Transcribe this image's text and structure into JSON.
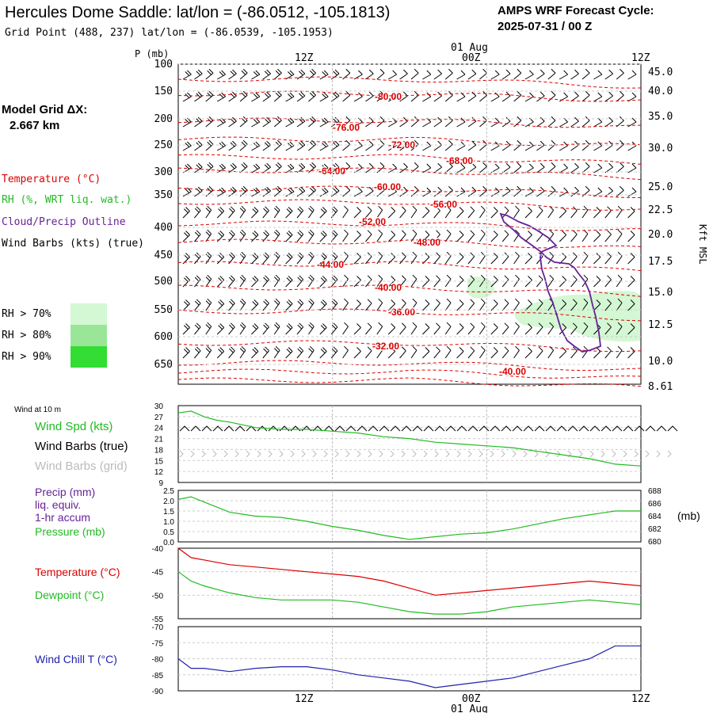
{
  "header": {
    "title": "Hercules Dome Saddle:  lat/lon = (-86.0512, -105.1813)",
    "grid_point": "Grid Point (488, 237) lat/lon = (-86.0539, -105.1953)",
    "cycle_line1": "AMPS WRF Forecast Cycle:",
    "cycle_line2": "2025-07-31 / 00  Z"
  },
  "left_legend": {
    "model_grid_line1": "Model Grid ΔX:",
    "model_grid_line2": "2.667 km",
    "temperature": "Temperature (°C)",
    "rh": "RH (%, WRT liq. wat.)",
    "cloud": "Cloud/Precip Outline",
    "wind_barbs": "Wind Barbs (kts) (true)",
    "rh70": "RH > 70%",
    "rh80": "RH > 80%",
    "rh90": "RH > 90%"
  },
  "colors": {
    "temperature": "#dd0000",
    "rh_green": "#22bb22",
    "cloud_outline": "#662299",
    "rh70_fill": "#d4f7d4",
    "rh80_fill": "#99e699",
    "rh90_fill": "#33dd33",
    "windchill": "#2222aa",
    "grid_barbs": "#bbbbbb"
  },
  "time_axis": {
    "top_labels": [
      "12Z",
      "00Z",
      "12Z"
    ],
    "date_label": "01 Aug",
    "bottom_labels": [
      "12Z",
      "00Z",
      "12Z"
    ],
    "bottom_date_label": "01 Aug"
  },
  "cross_section": {
    "p_axis_title": "P (mb)",
    "pressure_ticks": [
      "100",
      "150",
      "200",
      "250",
      "300",
      "350",
      "400",
      "450",
      "500",
      "550",
      "600",
      "650"
    ],
    "height_axis_title": "Kft MSL",
    "height_ticks": [
      "45.0",
      "40.0",
      "35.0",
      "30.0",
      "25.0",
      "22.5",
      "20.0",
      "17.5",
      "15.0",
      "12.5",
      "10.0",
      "8.61"
    ],
    "temperature_labels": [
      "-80.00",
      "-76.00",
      "-72.00",
      "-68.00",
      "-64.00",
      "-60.00",
      "-56.00",
      "-52.00",
      "-48.00",
      "-44.00",
      "-40.00",
      "-36.00",
      "-32.00",
      "-40.00"
    ]
  },
  "panel_wind": {
    "header": "Wind at 10 m",
    "label_speed": "Wind Spd (kts)",
    "label_barbs_true": "Wind Barbs (true)",
    "label_barbs_grid": "Wind Barbs (grid)",
    "yticks": [
      "30",
      "27",
      "24",
      "21",
      "18",
      "15",
      "12",
      "9"
    ]
  },
  "panel_precip": {
    "label1": "Precip (mm)",
    "label2": "liq. equiv.",
    "label3": "1-hr accum",
    "label4": "Pressure (mb)",
    "left_ticks": [
      "2.5",
      "2.0",
      "1.5",
      "1.0",
      "0.5",
      "0.0"
    ],
    "right_ticks": [
      "688",
      "686",
      "684",
      "682",
      "680"
    ],
    "right_unit": "(mb)"
  },
  "panel_temp": {
    "label_temp": "Temperature (°C)",
    "label_dew": "Dewpoint (°C)",
    "yticks": [
      "-40",
      "-45",
      "-50",
      "-55"
    ]
  },
  "panel_windchill": {
    "label": "Wind Chill T (°C)",
    "yticks": [
      "-70",
      "-75",
      "-80",
      "-85",
      "-90"
    ]
  },
  "chart_data": {
    "type": "line",
    "x_unit": "forecast hour",
    "x_range": [
      0,
      36
    ],
    "series": [
      {
        "name": "Wind Spd (kts)",
        "x": [
          0,
          1,
          2,
          3,
          4,
          6,
          8,
          10,
          12,
          14,
          16,
          18,
          20,
          22,
          24,
          26,
          28,
          30,
          32,
          34,
          36
        ],
        "values": [
          28,
          28.5,
          27,
          26,
          25.5,
          24,
          23.5,
          23.5,
          23,
          22.5,
          21.5,
          21,
          20,
          19.5,
          19,
          18.5,
          17.5,
          16.5,
          15.5,
          14,
          13.5
        ]
      },
      {
        "name": "Pressure (mb)",
        "x": [
          0,
          1,
          2,
          3,
          4,
          6,
          8,
          10,
          12,
          14,
          16,
          18,
          20,
          22,
          24,
          26,
          28,
          30,
          32,
          34,
          36
        ],
        "values": [
          686.6,
          687.0,
          686.2,
          685.4,
          684.6,
          684.0,
          683.8,
          683.2,
          682.4,
          681.8,
          681.0,
          680.4,
          680.8,
          681.2,
          681.4,
          682.0,
          682.8,
          683.6,
          684.2,
          684.8,
          684.8
        ]
      },
      {
        "name": "Temperature (°C)",
        "x": [
          0,
          1,
          2,
          4,
          6,
          8,
          10,
          12,
          14,
          16,
          18,
          20,
          22,
          24,
          26,
          28,
          30,
          32,
          34,
          36
        ],
        "values": [
          -40,
          -42,
          -42.5,
          -43.5,
          -44,
          -44.5,
          -45,
          -45.5,
          -46,
          -47,
          -48.5,
          -50,
          -49.5,
          -49,
          -48.5,
          -48,
          -47.5,
          -47,
          -47.5,
          -48
        ]
      },
      {
        "name": "Dewpoint (°C)",
        "x": [
          0,
          1,
          2,
          4,
          6,
          8,
          10,
          12,
          14,
          16,
          18,
          20,
          22,
          24,
          26,
          28,
          30,
          32,
          34,
          36
        ],
        "values": [
          -45,
          -47,
          -48,
          -49.5,
          -50.5,
          -51,
          -51,
          -51,
          -51.5,
          -52.5,
          -53.5,
          -54,
          -54,
          -53.5,
          -52.5,
          -52,
          -51.5,
          -51,
          -51.5,
          -52
        ]
      },
      {
        "name": "Wind Chill T (°C)",
        "x": [
          0,
          1,
          2,
          4,
          6,
          8,
          10,
          12,
          14,
          16,
          18,
          20,
          22,
          24,
          26,
          28,
          30,
          32,
          34,
          36
        ],
        "values": [
          -80,
          -83,
          -83,
          -84,
          -83,
          -82.5,
          -82.5,
          -83.5,
          -85,
          -86,
          -87,
          -89,
          -88,
          -87,
          -86,
          -84,
          -82,
          -80,
          -76,
          -76
        ]
      }
    ]
  }
}
